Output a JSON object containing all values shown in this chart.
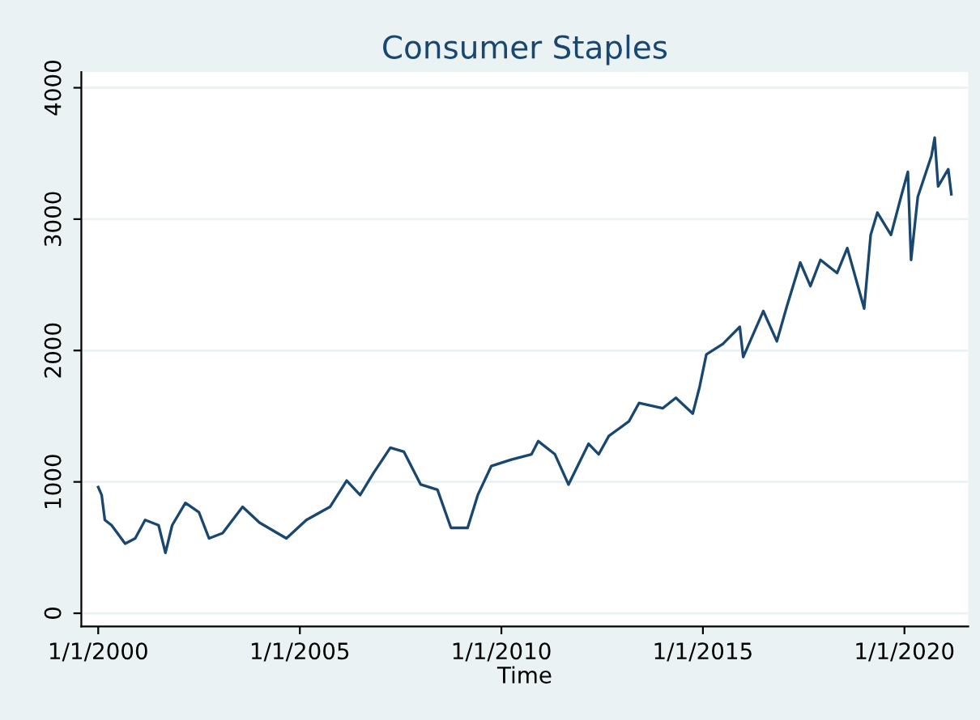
{
  "chart_data": {
    "type": "line",
    "title": "Consumer Staples",
    "xlabel": "Time",
    "x": [
      "2000-01",
      "2000-02",
      "2000-03",
      "2000-05",
      "2000-09",
      "2000-12",
      "2001-03",
      "2001-07",
      "2001-09",
      "2001-11",
      "2002-03",
      "2002-07",
      "2002-10",
      "2003-02",
      "2003-08",
      "2004-01",
      "2004-09",
      "2005-03",
      "2005-10",
      "2006-03",
      "2006-07",
      "2006-11",
      "2007-04",
      "2007-08",
      "2008-01",
      "2008-06",
      "2008-10",
      "2009-03",
      "2009-06",
      "2009-10",
      "2010-04",
      "2010-10",
      "2010-12",
      "2011-05",
      "2011-09",
      "2012-03",
      "2012-06",
      "2012-09",
      "2013-03",
      "2013-06",
      "2014-01",
      "2014-05",
      "2014-10",
      "2014-12",
      "2015-02",
      "2015-07",
      "2015-12",
      "2016-01",
      "2016-07",
      "2016-11",
      "2017-02",
      "2017-06",
      "2017-09",
      "2017-12",
      "2018-05",
      "2018-08",
      "2019-01",
      "2019-03",
      "2019-05",
      "2019-09",
      "2019-12",
      "2020-02",
      "2020-03",
      "2020-05",
      "2020-09",
      "2020-10",
      "2020-11",
      "2021-02",
      "2021-03"
    ],
    "series": [
      {
        "color": "#1a476f",
        "values": [
          960,
          900,
          710,
          670,
          530,
          570,
          710,
          670,
          460,
          670,
          840,
          770,
          570,
          610,
          810,
          690,
          570,
          710,
          810,
          1010,
          900,
          1070,
          1260,
          1230,
          980,
          940,
          650,
          650,
          900,
          1120,
          1170,
          1210,
          1310,
          1210,
          980,
          1290,
          1210,
          1350,
          1460,
          1600,
          1560,
          1640,
          1520,
          1720,
          1970,
          2050,
          2180,
          1950,
          2300,
          2070,
          2340,
          2670,
          2490,
          2690,
          2590,
          2780,
          2320,
          2880,
          3050,
          2880,
          3170,
          3360,
          2690,
          3170,
          3480,
          3620,
          3250,
          3380,
          3190
        ]
      }
    ],
    "xlim": [
      "1999-08-01",
      "2021-08-01"
    ],
    "ylim": [
      -100,
      4120
    ],
    "xticks": [
      {
        "value": "2000-01-01",
        "label": "1/1/2000"
      },
      {
        "value": "2005-01-01",
        "label": "1/1/2005"
      },
      {
        "value": "2010-01-01",
        "label": "1/1/2010"
      },
      {
        "value": "2015-01-01",
        "label": "1/1/2015"
      },
      {
        "value": "2020-01-01",
        "label": "1/1/2020"
      }
    ],
    "yticks": [
      0,
      1000,
      2000,
      3000,
      4000
    ],
    "grid": "y",
    "marker": "none",
    "line_style": "solid"
  }
}
